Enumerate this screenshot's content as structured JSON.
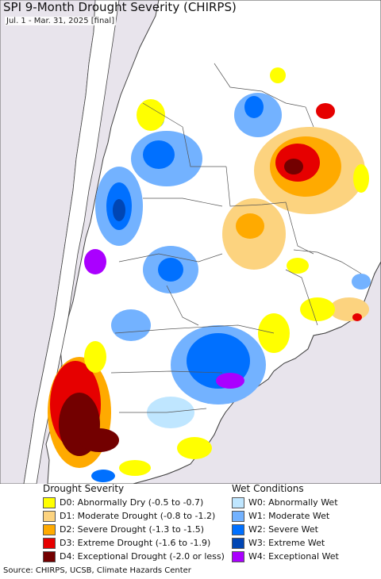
{
  "map": {
    "title": "SPI 9-Month Drought Severity (CHIRPS)",
    "subtitle": "Jul. 1 - Mar. 31, 2025 [final]"
  },
  "colors": {
    "background": "#e8e4ec",
    "land": "#ffffff",
    "D0": "#ffff00",
    "D1": "#fcd37f",
    "D2": "#ffaa00",
    "D3": "#e60000",
    "D4": "#730000",
    "W0": "#bfe6ff",
    "W1": "#73b2ff",
    "W2": "#0070ff",
    "W3": "#0046b4",
    "W4": "#aa00ff"
  },
  "legend": {
    "drought": {
      "title": "Drought Severity",
      "items": [
        {
          "key": "D0",
          "label": "D0: Abnormally Dry (-0.5 to -0.7)"
        },
        {
          "key": "D1",
          "label": "D1: Moderate Drought (-0.8 to -1.2)"
        },
        {
          "key": "D2",
          "label": "D2: Severe Drought (-1.3 to -1.5)"
        },
        {
          "key": "D3",
          "label": "D3: Extreme Drought (-1.6 to -1.9)"
        },
        {
          "key": "D4",
          "label": "D4: Exceptional Drought (-2.0 or less)"
        }
      ]
    },
    "wet": {
      "title": "Wet Conditions",
      "items": [
        {
          "key": "W0",
          "label": "W0: Abnormally Wet"
        },
        {
          "key": "W1",
          "label": "W1: Moderate Wet"
        },
        {
          "key": "W2",
          "label": "W2: Severe Wet"
        },
        {
          "key": "W3",
          "label": "W3: Extreme Wet"
        },
        {
          "key": "W4",
          "label": "W4: Exceptional Wet"
        }
      ]
    }
  },
  "source": "Source: CHIRPS, UCSB, Climate Hazards Center"
}
